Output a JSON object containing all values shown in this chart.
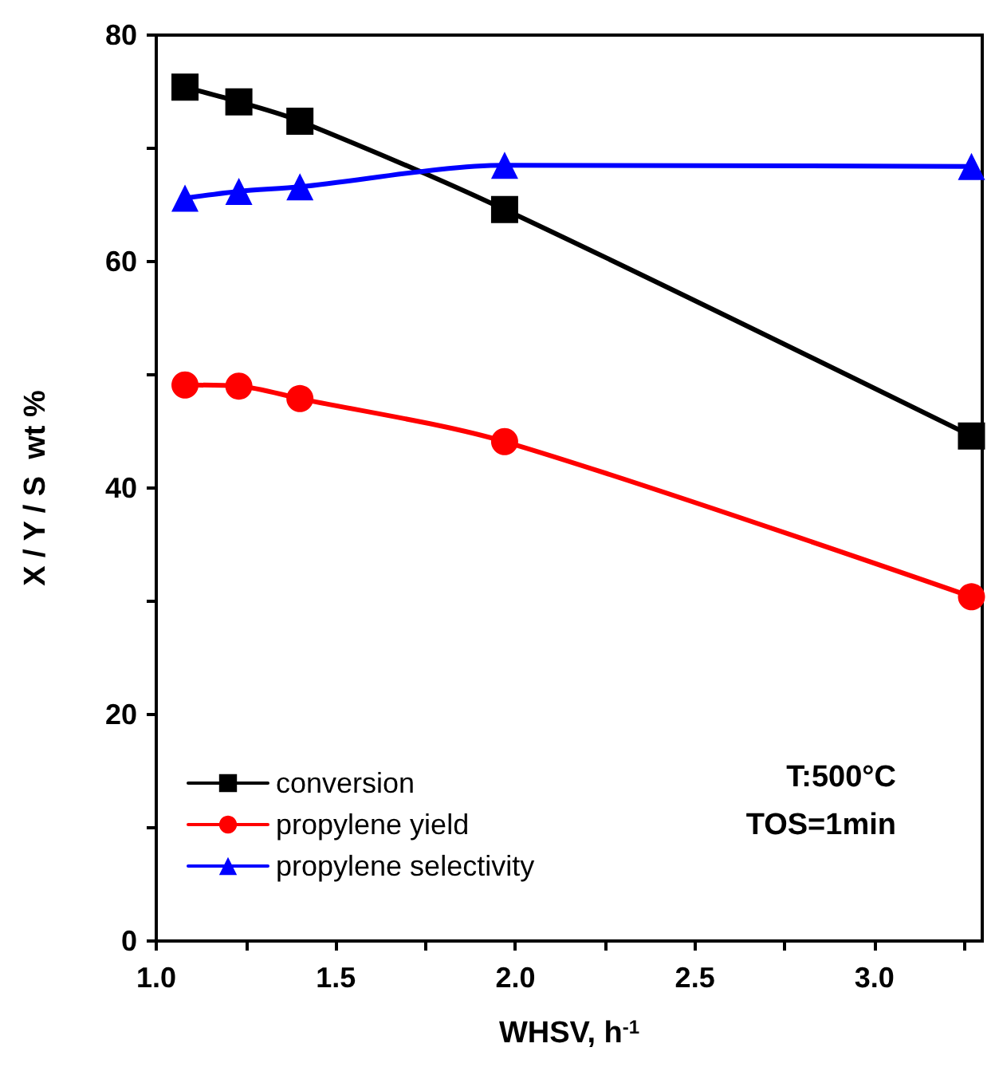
{
  "chart_data": {
    "type": "line",
    "xlabel": "WHSV, h$^{-1}$",
    "ylabel": "X / Y / S  wt %",
    "xlim": [
      1.0,
      3.3
    ],
    "xticks": [
      {
        "value": 1,
        "label": "1.0"
      },
      {
        "value": 1.25,
        "label": null
      },
      {
        "value": 1.5,
        "label": "1.5"
      },
      {
        "value": 1.75,
        "label": null
      },
      {
        "value": 2,
        "label": "2.0"
      },
      {
        "value": 2.25,
        "label": null
      },
      {
        "value": 2.5,
        "label": "2.5"
      },
      {
        "value": 2.75,
        "label": null
      },
      {
        "value": 3,
        "label": "3.0"
      },
      {
        "value": 3.25,
        "label": null
      }
    ],
    "ylim": [
      0,
      80
    ],
    "yticks": [
      0,
      {
        "value": 10,
        "label": null
      },
      20,
      {
        "value": 30,
        "label": null
      },
      40,
      {
        "value": 50,
        "label": null
      },
      60,
      {
        "value": 70,
        "label": null
      },
      80
    ],
    "x": [
      1.08,
      1.23,
      1.4,
      1.97,
      3.27
    ],
    "series": [
      {
        "name": "conversion",
        "color": "#000000",
        "marker": "square",
        "values": [
          75.4,
          74.1,
          72.4,
          64.6,
          44.6
        ]
      },
      {
        "name": "propylene yield",
        "color": "#ff0000",
        "marker": "circle",
        "values": [
          49.1,
          49.0,
          47.9,
          44.1,
          30.4
        ]
      },
      {
        "name": "propylene selectivity",
        "color": "#0000ff",
        "marker": "triangle",
        "values": [
          65.6,
          66.2,
          66.6,
          68.5,
          68.4
        ]
      }
    ],
    "line_style": "solid",
    "grid": false,
    "legend": "bottom left",
    "annotations": [
      "T:500°C",
      "TOS=1min"
    ]
  }
}
